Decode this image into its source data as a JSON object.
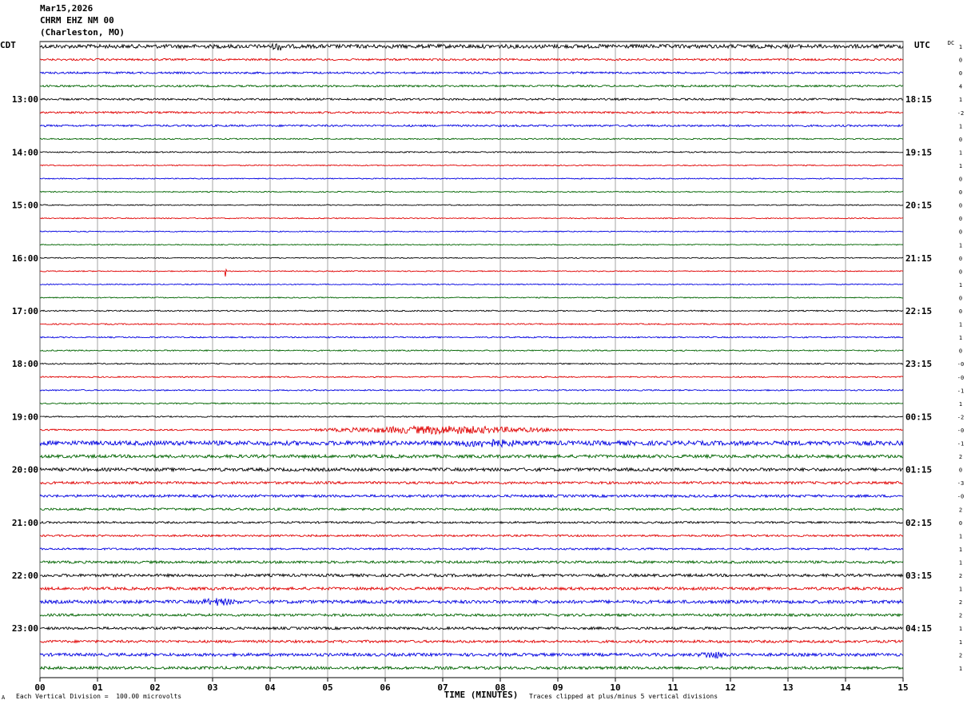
{
  "header": {
    "date": "Mar15,2026",
    "station": "CHRM EHZ NM 00",
    "location": "(Charleston, MO)"
  },
  "footer": {
    "scale_note": "Each Vertical Division =  100.00 microvolts",
    "clip_note": "Traces clipped at plus/minus 5 vertical divisions",
    "corner_mark": "A"
  },
  "colors": {
    "trace_cycle": [
      "#000000",
      "#e00000",
      "#0000e0",
      "#006400"
    ],
    "grid": "#808080"
  },
  "chart_data": {
    "type": "line",
    "title": "",
    "xlabel": "TIME (MINUTES)",
    "left_tz": "CDT",
    "right_tz": "UTC",
    "dc_header": "DC",
    "xlim": [
      0,
      15
    ],
    "x_ticks": [
      "00",
      "01",
      "02",
      "03",
      "04",
      "05",
      "06",
      "07",
      "08",
      "09",
      "10",
      "11",
      "12",
      "13",
      "14",
      "15"
    ],
    "traces_per_hour": 4,
    "left_labels": [
      {
        "trace": 4,
        "label": "13:00"
      },
      {
        "trace": 8,
        "label": "14:00"
      },
      {
        "trace": 12,
        "label": "15:00"
      },
      {
        "trace": 16,
        "label": "16:00"
      },
      {
        "trace": 20,
        "label": "17:00"
      },
      {
        "trace": 24,
        "label": "18:00"
      },
      {
        "trace": 28,
        "label": "19:00"
      },
      {
        "trace": 32,
        "label": "20:00"
      },
      {
        "trace": 36,
        "label": "21:00"
      },
      {
        "trace": 40,
        "label": "22:00"
      },
      {
        "trace": 44,
        "label": "23:00"
      }
    ],
    "right_labels": [
      {
        "trace": 4,
        "label": "18:15"
      },
      {
        "trace": 8,
        "label": "19:15"
      },
      {
        "trace": 12,
        "label": "20:15"
      },
      {
        "trace": 16,
        "label": "21:15"
      },
      {
        "trace": 20,
        "label": "22:15"
      },
      {
        "trace": 24,
        "label": "23:15"
      },
      {
        "trace": 28,
        "label": "00:15"
      },
      {
        "trace": 32,
        "label": "01:15"
      },
      {
        "trace": 36,
        "label": "02:15"
      },
      {
        "trace": 40,
        "label": "03:15"
      },
      {
        "trace": 44,
        "label": "04:15"
      }
    ],
    "dc_offsets": [
      "1",
      "0",
      "0",
      "4",
      "1",
      "-2",
      "1",
      "0",
      "1",
      "1",
      "0",
      "0",
      "0",
      "0",
      "0",
      "1",
      "0",
      "0",
      "1",
      "0",
      "0",
      "1",
      "1",
      "0",
      "-0",
      "-0",
      "-1",
      "1",
      "-2",
      "-0",
      "-1",
      "2",
      "0",
      "-3",
      "-0",
      "2",
      "0",
      "1",
      "1",
      "1",
      "2",
      "1",
      "2",
      "2",
      "1",
      "1",
      "2",
      "1"
    ],
    "activity": [
      3,
      1.5,
      1.5,
      1.5,
      1.5,
      1.5,
      1.5,
      1,
      1,
      0.8,
      0.8,
      0.8,
      0.8,
      0.8,
      0.8,
      0.8,
      0.8,
      0.8,
      0.8,
      0.8,
      1,
      1,
      1,
      1,
      1,
      1,
      1,
      1,
      1,
      1.2,
      3.5,
      2.5,
      2.5,
      2,
      2,
      1.8,
      1.5,
      1.5,
      1.5,
      2,
      2.2,
      2.2,
      2.6,
      2,
      2,
      2,
      2.4,
      2.2
    ],
    "events": [
      {
        "trace": 29,
        "start_min": 4.5,
        "end_min": 9.5,
        "amp": 2.0
      },
      {
        "trace": 30,
        "start_min": 7.0,
        "end_min": 8.5,
        "amp": 1.3
      },
      {
        "trace": 17,
        "start_min": 3.2,
        "end_min": 3.25,
        "amp": 3.0
      },
      {
        "trace": 42,
        "start_min": 2.7,
        "end_min": 3.5,
        "amp": 1.4
      },
      {
        "trace": 46,
        "start_min": 11.4,
        "end_min": 12.0,
        "amp": 1.5
      },
      {
        "trace": 0,
        "start_min": 4.0,
        "end_min": 4.3,
        "amp": 1.5
      }
    ]
  }
}
